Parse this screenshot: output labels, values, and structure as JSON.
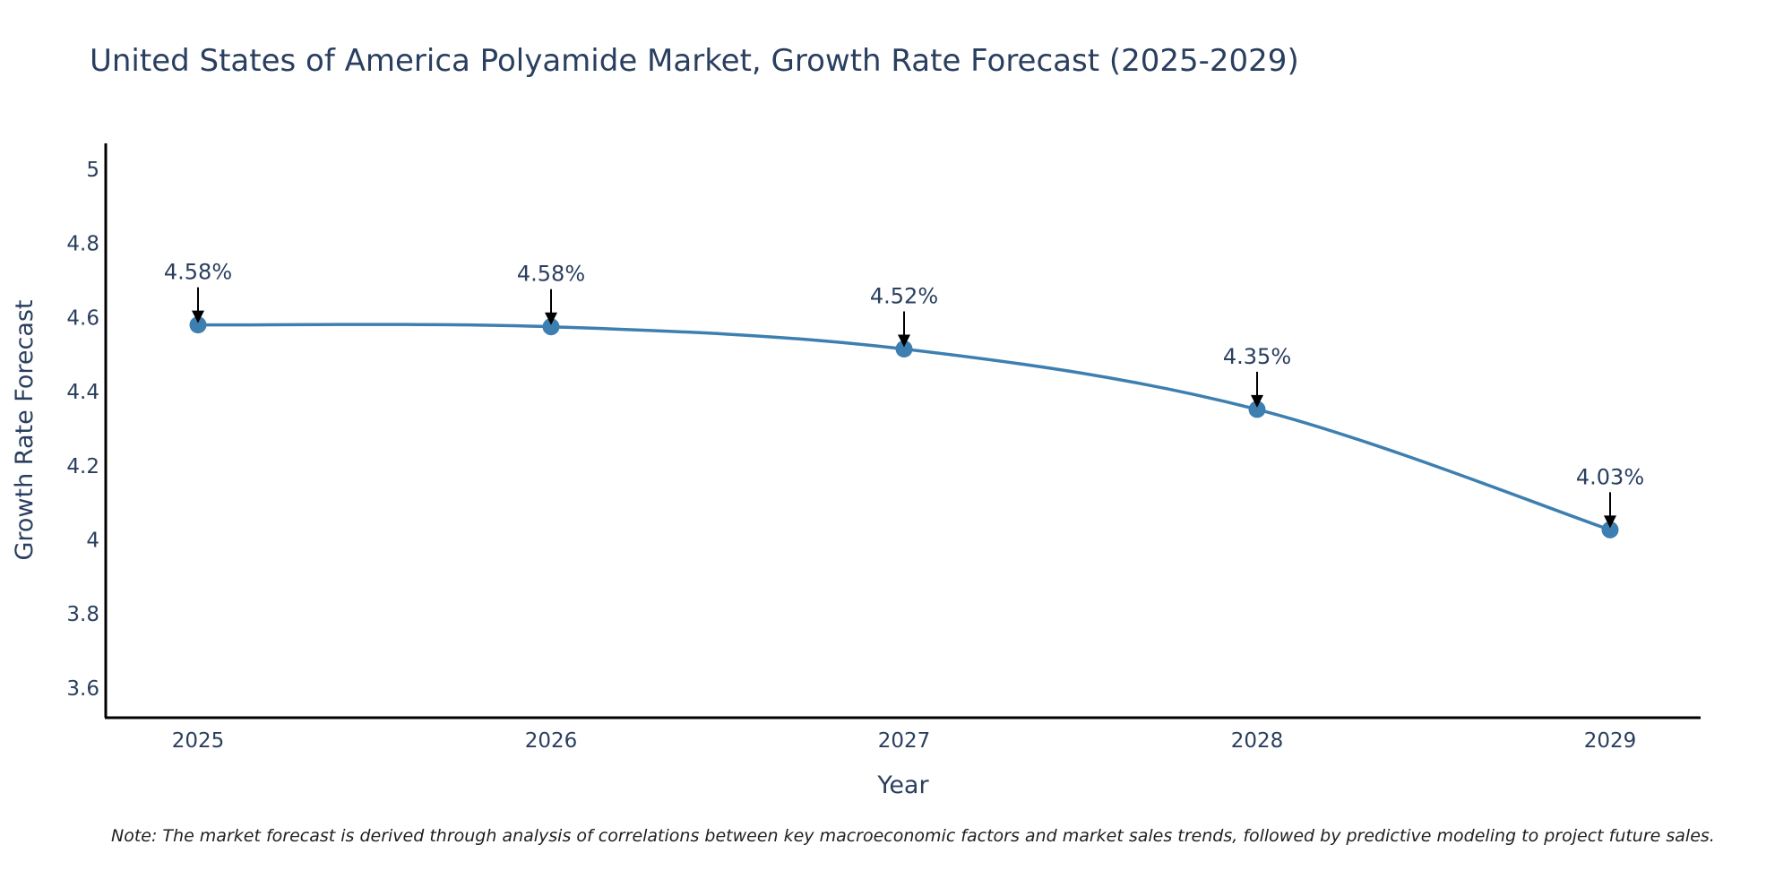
{
  "chart_data": {
    "type": "line",
    "title": "United States of America Polyamide Market, Growth Rate Forecast (2025-2029)",
    "xlabel": "Year",
    "ylabel": "Growth Rate Forecast",
    "x": [
      "2025",
      "2026",
      "2027",
      "2028",
      "2029"
    ],
    "values": [
      4.58,
      4.575,
      4.515,
      4.352,
      4.027
    ],
    "labels": [
      "4.58%",
      "4.58%",
      "4.52%",
      "4.35%",
      "4.03%"
    ],
    "yticks": [
      3.6,
      3.8,
      4,
      4.2,
      4.4,
      4.6,
      4.8,
      5
    ],
    "ytick_labels": [
      "3.6",
      "3.8",
      "4",
      "4.2",
      "4.4",
      "4.6",
      "4.8",
      "5"
    ],
    "ylim": [
      3.52,
      5.07
    ],
    "grid": false,
    "line_color": "#3d7fb0",
    "note": "Note: The market forecast is derived through analysis of correlations between key macroeconomic factors and market sales trends, followed by predictive modeling to project future sales."
  }
}
